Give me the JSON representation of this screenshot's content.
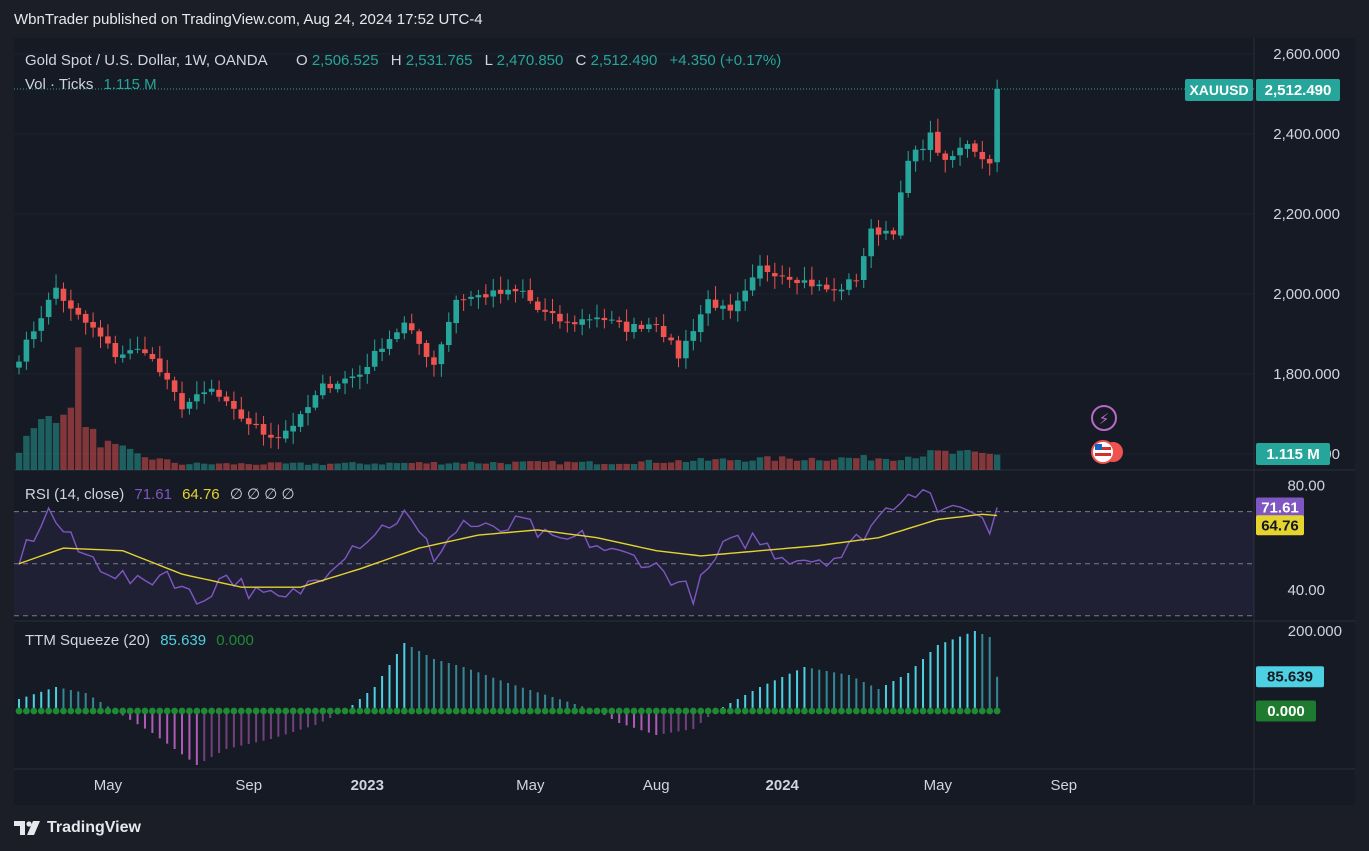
{
  "header": {
    "published_line": "WbnTrader published on TradingView.com, Aug 24, 2024 17:52 UTC-4"
  },
  "legend": {
    "symbol": "Gold Spot / U.S. Dollar, 1W, OANDA",
    "o_label": "O",
    "o_value": "2,506.525",
    "h_label": "H",
    "h_value": "2,531.765",
    "l_label": "L",
    "l_value": "2,470.850",
    "c_label": "C",
    "c_value": "2,512.490",
    "change": "+4.350 (+0.17%)",
    "vol_label": "Vol · Ticks",
    "vol_value": "1.115 M"
  },
  "price_tags": {
    "symbol_badge": "XAUUSD",
    "last_price": "2,512.490",
    "volume": "1.115 M"
  },
  "rsi": {
    "label": "RSI (14, close)",
    "value": "71.61",
    "ma_value": "64.76",
    "placeholders": "∅ ∅ ∅ ∅"
  },
  "ttm": {
    "label": "TTM Squeeze (20)",
    "value": "85.639",
    "zero_value": "0.000"
  },
  "footer": {
    "brand": "TradingView"
  },
  "colors": {
    "up": "#26a69a",
    "down": "#ef5350",
    "rsi_line": "#7e57c2",
    "rsi_ma": "#e5d42f",
    "ttm_pos": "#4dd0e1",
    "ttm_neg": "#b05ab8",
    "squeeze_dot": "#1e8a34"
  },
  "chart_data": [
    {
      "type": "candlestick",
      "title": "Gold Spot / U.S. Dollar, 1W, OANDA",
      "interval": "1W",
      "x_start": "2022-02-07",
      "x_end": "2024-08-19",
      "x_ticks": [
        "May",
        "Sep",
        "2023",
        "May",
        "Aug",
        "2024",
        "May",
        "Sep"
      ],
      "y_ticks": [
        1600,
        1800,
        2000,
        2200,
        2400,
        2600
      ],
      "ylim": [
        1560,
        2640
      ],
      "last_price": 2512.49,
      "anchors_close": [
        [
          0,
          1842
        ],
        [
          5,
          2015
        ],
        [
          7,
          1958
        ],
        [
          10,
          1912
        ],
        [
          13,
          1848
        ],
        [
          17,
          1862
        ],
        [
          22,
          1720
        ],
        [
          26,
          1760
        ],
        [
          29,
          1704
        ],
        [
          33,
          1652
        ],
        [
          35,
          1645
        ],
        [
          38,
          1690
        ],
        [
          41,
          1768
        ],
        [
          46,
          1800
        ],
        [
          49,
          1873
        ],
        [
          52,
          1925
        ],
        [
          56,
          1825
        ],
        [
          59,
          1987
        ],
        [
          64,
          2000
        ],
        [
          68,
          2005
        ],
        [
          70,
          1960
        ],
        [
          74,
          1925
        ],
        [
          78,
          1945
        ],
        [
          82,
          1914
        ],
        [
          86,
          1930
        ],
        [
          89,
          1845
        ],
        [
          93,
          1985
        ],
        [
          96,
          1950
        ],
        [
          98,
          2000
        ],
        [
          100,
          2065
        ],
        [
          104,
          2045
        ],
        [
          107,
          2025
        ],
        [
          110,
          2005
        ],
        [
          113,
          2040
        ],
        [
          115,
          2155
        ],
        [
          118,
          2160
        ],
        [
          120,
          2330
        ],
        [
          123,
          2395
        ],
        [
          125,
          2325
        ],
        [
          128,
          2380
        ],
        [
          131,
          2325
        ],
        [
          134,
          2335
        ],
        [
          137,
          2400
        ],
        [
          140,
          2445
        ],
        [
          143,
          2398
        ],
        [
          145,
          2505
        ],
        [
          146,
          2512
        ]
      ],
      "volume_anchors_millions": [
        [
          0,
          0.9
        ],
        [
          4,
          2.2
        ],
        [
          6,
          2.8
        ],
        [
          7,
          2.1
        ],
        [
          9,
          1.6
        ],
        [
          12,
          1.0
        ],
        [
          16,
          0.6
        ],
        [
          22,
          0.25
        ],
        [
          40,
          0.25
        ],
        [
          60,
          0.3
        ],
        [
          80,
          0.3
        ],
        [
          100,
          0.45
        ],
        [
          118,
          0.5
        ],
        [
          124,
          0.7
        ],
        [
          140,
          0.55
        ],
        [
          146,
          1.115
        ]
      ],
      "volume_ylim": [
        0,
        5.5
      ]
    },
    {
      "type": "line",
      "title": "RSI (14, close)",
      "y_ticks": [
        40,
        80
      ],
      "ylim": [
        28,
        86
      ],
      "levels": [
        30,
        50,
        70
      ],
      "rsi_anchors": [
        [
          0,
          52
        ],
        [
          4,
          70
        ],
        [
          8,
          55
        ],
        [
          12,
          48
        ],
        [
          16,
          42
        ],
        [
          20,
          47
        ],
        [
          24,
          35
        ],
        [
          28,
          46
        ],
        [
          32,
          38
        ],
        [
          36,
          36
        ],
        [
          40,
          44
        ],
        [
          44,
          55
        ],
        [
          48,
          62
        ],
        [
          52,
          69
        ],
        [
          56,
          53
        ],
        [
          60,
          66
        ],
        [
          64,
          62
        ],
        [
          68,
          66
        ],
        [
          72,
          58
        ],
        [
          76,
          60
        ],
        [
          80,
          54
        ],
        [
          84,
          52
        ],
        [
          88,
          45
        ],
        [
          91,
          38
        ],
        [
          95,
          56
        ],
        [
          99,
          60
        ],
        [
          103,
          53
        ],
        [
          107,
          52
        ],
        [
          111,
          53
        ],
        [
          115,
          65
        ],
        [
          119,
          76
        ],
        [
          122,
          80
        ],
        [
          125,
          68
        ],
        [
          128,
          73
        ],
        [
          131,
          63
        ],
        [
          134,
          62
        ],
        [
          137,
          65
        ],
        [
          140,
          67
        ],
        [
          143,
          64
        ],
        [
          146,
          71.61
        ]
      ],
      "ma_anchors": [
        [
          0,
          50
        ],
        [
          6,
          56
        ],
        [
          14,
          55
        ],
        [
          22,
          46
        ],
        [
          30,
          41
        ],
        [
          38,
          41
        ],
        [
          46,
          48
        ],
        [
          54,
          56
        ],
        [
          62,
          61
        ],
        [
          70,
          63
        ],
        [
          78,
          60
        ],
        [
          86,
          55
        ],
        [
          92,
          53
        ],
        [
          100,
          55
        ],
        [
          108,
          57
        ],
        [
          116,
          60
        ],
        [
          124,
          67
        ],
        [
          130,
          69
        ],
        [
          138,
          67
        ],
        [
          146,
          64.76
        ]
      ],
      "last_value": 71.61,
      "last_ma": 64.76
    },
    {
      "type": "bar",
      "title": "TTM Squeeze (20)",
      "y_ticks": [
        0,
        200
      ],
      "ylim": [
        -145,
        225
      ],
      "momentum_anchors": [
        [
          0,
          30
        ],
        [
          5,
          60
        ],
        [
          9,
          45
        ],
        [
          13,
          0
        ],
        [
          18,
          -55
        ],
        [
          24,
          -135
        ],
        [
          28,
          -95
        ],
        [
          34,
          -70
        ],
        [
          40,
          -35
        ],
        [
          44,
          0
        ],
        [
          48,
          60
        ],
        [
          52,
          170
        ],
        [
          56,
          130
        ],
        [
          60,
          110
        ],
        [
          66,
          70
        ],
        [
          72,
          35
        ],
        [
          78,
          0
        ],
        [
          81,
          -30
        ],
        [
          86,
          -60
        ],
        [
          91,
          -45
        ],
        [
          94,
          0
        ],
        [
          100,
          60
        ],
        [
          106,
          110
        ],
        [
          112,
          90
        ],
        [
          116,
          55
        ],
        [
          120,
          95
        ],
        [
          124,
          165
        ],
        [
          129,
          200
        ],
        [
          133,
          170
        ],
        [
          137,
          130
        ],
        [
          141,
          95
        ],
        [
          146,
          85.639
        ]
      ],
      "last_value": 85.639,
      "zero_value": 0.0
    }
  ]
}
